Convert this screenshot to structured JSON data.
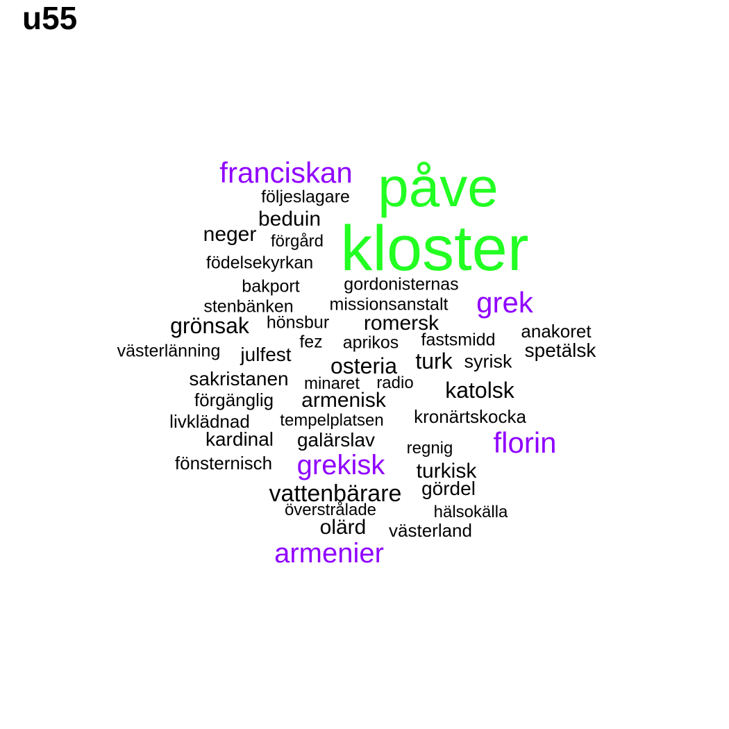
{
  "title": "u55",
  "colors": {
    "large": "#22ff22",
    "medium": "#8f00ff",
    "small": "#000000"
  },
  "words": [
    {
      "text": "kloster",
      "weight": 3,
      "color": "large"
    },
    {
      "text": "påve",
      "weight": 3,
      "color": "large"
    },
    {
      "text": "franciskan",
      "weight": 2,
      "color": "medium"
    },
    {
      "text": "grek",
      "weight": 2,
      "color": "medium"
    },
    {
      "text": "florin",
      "weight": 2,
      "color": "medium"
    },
    {
      "text": "grekisk",
      "weight": 2,
      "color": "medium"
    },
    {
      "text": "armenier",
      "weight": 2,
      "color": "medium"
    },
    {
      "text": "följeslagare",
      "weight": 1,
      "color": "small"
    },
    {
      "text": "beduin",
      "weight": 1,
      "color": "small"
    },
    {
      "text": "neger",
      "weight": 1,
      "color": "small"
    },
    {
      "text": "förgård",
      "weight": 1,
      "color": "small"
    },
    {
      "text": "födelsekyrkan",
      "weight": 1,
      "color": "small"
    },
    {
      "text": "bakport",
      "weight": 1,
      "color": "small"
    },
    {
      "text": "gordonisternas",
      "weight": 1,
      "color": "small"
    },
    {
      "text": "stenbänken",
      "weight": 1,
      "color": "small"
    },
    {
      "text": "missionsanstalt",
      "weight": 1,
      "color": "small"
    },
    {
      "text": "grönsak",
      "weight": 1,
      "color": "small"
    },
    {
      "text": "hönsbur",
      "weight": 1,
      "color": "small"
    },
    {
      "text": "romersk",
      "weight": 1,
      "color": "small"
    },
    {
      "text": "anakoret",
      "weight": 1,
      "color": "small"
    },
    {
      "text": "västerlänning",
      "weight": 1,
      "color": "small"
    },
    {
      "text": "fez",
      "weight": 1,
      "color": "small"
    },
    {
      "text": "aprikos",
      "weight": 1,
      "color": "small"
    },
    {
      "text": "fastsmidd",
      "weight": 1,
      "color": "small"
    },
    {
      "text": "spetälsk",
      "weight": 1,
      "color": "small"
    },
    {
      "text": "julfest",
      "weight": 1,
      "color": "small"
    },
    {
      "text": "osteria",
      "weight": 1,
      "color": "small"
    },
    {
      "text": "turk",
      "weight": 1,
      "color": "small"
    },
    {
      "text": "syrisk",
      "weight": 1,
      "color": "small"
    },
    {
      "text": "sakristanen",
      "weight": 1,
      "color": "small"
    },
    {
      "text": "minaret",
      "weight": 1,
      "color": "small"
    },
    {
      "text": "radio",
      "weight": 1,
      "color": "small"
    },
    {
      "text": "katolsk",
      "weight": 1,
      "color": "small"
    },
    {
      "text": "förgänglig",
      "weight": 1,
      "color": "small"
    },
    {
      "text": "armenisk",
      "weight": 1,
      "color": "small"
    },
    {
      "text": "livklädnad",
      "weight": 1,
      "color": "small"
    },
    {
      "text": "tempelplatsen",
      "weight": 1,
      "color": "small"
    },
    {
      "text": "kronärtskocka",
      "weight": 1,
      "color": "small"
    },
    {
      "text": "kardinal",
      "weight": 1,
      "color": "small"
    },
    {
      "text": "galärslav",
      "weight": 1,
      "color": "small"
    },
    {
      "text": "regnig",
      "weight": 1,
      "color": "small"
    },
    {
      "text": "fönsternisch",
      "weight": 1,
      "color": "small"
    },
    {
      "text": "turkisk",
      "weight": 1,
      "color": "small"
    },
    {
      "text": "vattenbärare",
      "weight": 1,
      "color": "small"
    },
    {
      "text": "gördel",
      "weight": 1,
      "color": "small"
    },
    {
      "text": "överstrålade",
      "weight": 1,
      "color": "small"
    },
    {
      "text": "hälsokälla",
      "weight": 1,
      "color": "small"
    },
    {
      "text": "olärd",
      "weight": 1,
      "color": "small"
    },
    {
      "text": "västerland",
      "weight": 1,
      "color": "small"
    }
  ]
}
